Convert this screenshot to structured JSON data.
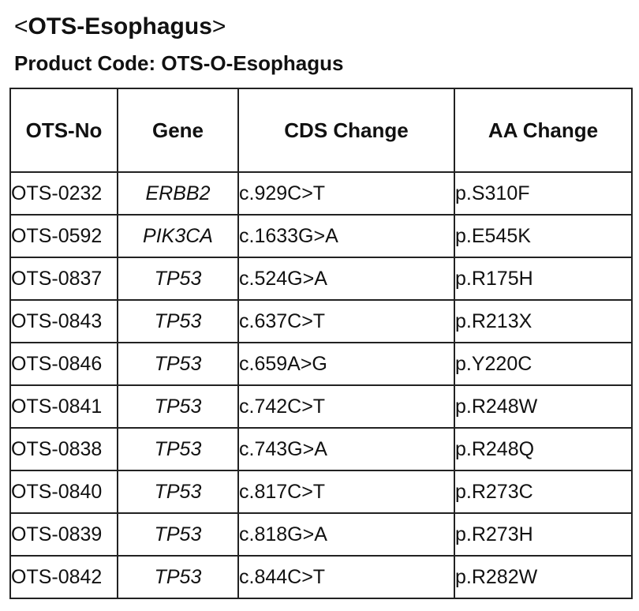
{
  "title": {
    "open_bracket": "<",
    "name": "OTS-Esophagus",
    "close_bracket": ">"
  },
  "product_code": "Product Code: OTS-O-Esophagus",
  "table": {
    "headers": [
      "OTS-No",
      "Gene",
      "CDS Change",
      "AA Change"
    ],
    "rows": [
      {
        "ots_no": "OTS-0232",
        "gene": "ERBB2",
        "cds": "c.929C>T",
        "aa": "p.S310F"
      },
      {
        "ots_no": "OTS-0592",
        "gene": "PIK3CA",
        "cds": "c.1633G>A",
        "aa": "p.E545K"
      },
      {
        "ots_no": "OTS-0837",
        "gene": "TP53",
        "cds": "c.524G>A",
        "aa": "p.R175H"
      },
      {
        "ots_no": "OTS-0843",
        "gene": "TP53",
        "cds": "c.637C>T",
        "aa": "p.R213X"
      },
      {
        "ots_no": "OTS-0846",
        "gene": "TP53",
        "cds": "c.659A>G",
        "aa": "p.Y220C"
      },
      {
        "ots_no": "OTS-0841",
        "gene": "TP53",
        "cds": "c.742C>T",
        "aa": "p.R248W"
      },
      {
        "ots_no": "OTS-0838",
        "gene": "TP53",
        "cds": "c.743G>A",
        "aa": "p.R248Q"
      },
      {
        "ots_no": "OTS-0840",
        "gene": "TP53",
        "cds": "c.817C>T",
        "aa": "p.R273C"
      },
      {
        "ots_no": "OTS-0839",
        "gene": "TP53",
        "cds": "c.818G>A",
        "aa": "p.R273H"
      },
      {
        "ots_no": "OTS-0842",
        "gene": "TP53",
        "cds": "c.844C>T",
        "aa": "p.R282W"
      }
    ]
  }
}
